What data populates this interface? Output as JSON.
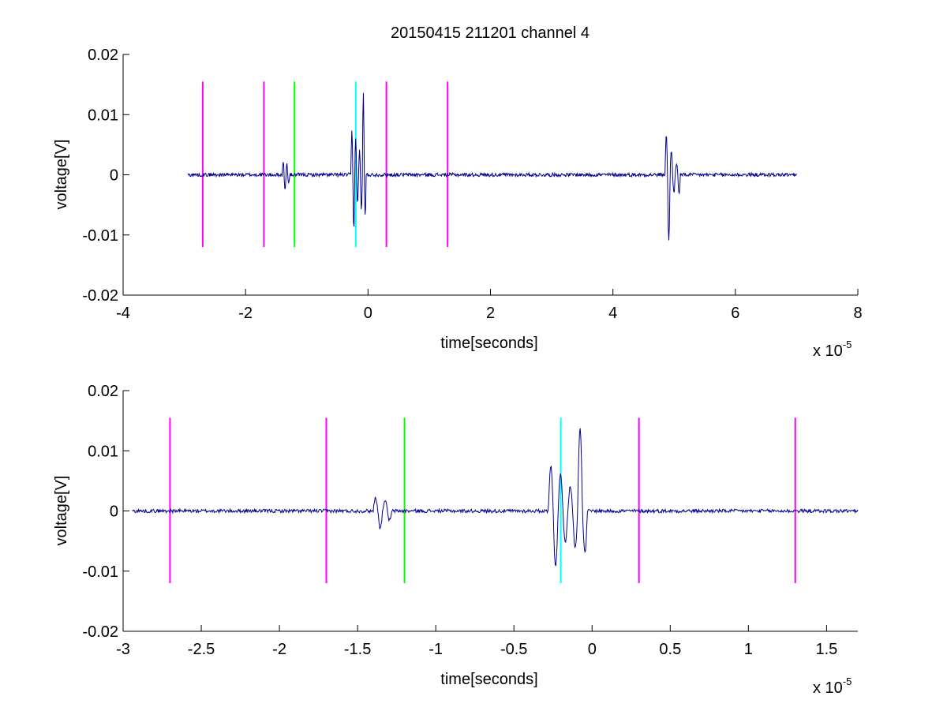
{
  "title": "20150415 211201 channel 4",
  "colors": {
    "signal": "#00008B",
    "marker_magenta": "#FF00FF",
    "marker_green": "#00FF00",
    "marker_cyan": "#00FFFF",
    "axes": "#000000",
    "background": "#FFFFFF"
  },
  "chart_data": [
    {
      "type": "line",
      "title": "20150415 211201 channel 4",
      "xlabel": "time[seconds]",
      "ylabel": "voltage[V]",
      "x_multiplier": {
        "base": "x 10",
        "exponent": "-5"
      },
      "xlim": [
        -4,
        8
      ],
      "ylim": [
        -0.02,
        0.02
      ],
      "xticks": [
        -4,
        -2,
        0,
        2,
        4,
        6,
        8
      ],
      "xtick_labels": [
        "-4",
        "-2",
        "0",
        "2",
        "4",
        "6",
        "8"
      ],
      "yticks": [
        -0.02,
        -0.01,
        0,
        0.01,
        0.02
      ],
      "ytick_labels": [
        "-0.02",
        "-0.01",
        "0",
        "0.01",
        "0.02"
      ],
      "markers": [
        {
          "x": -2.7,
          "color": "magenta",
          "y_range": [
            -0.012,
            0.0155
          ]
        },
        {
          "x": -1.7,
          "color": "magenta",
          "y_range": [
            -0.012,
            0.0155
          ]
        },
        {
          "x": -1.2,
          "color": "green",
          "y_range": [
            -0.012,
            0.0155
          ]
        },
        {
          "x": -0.2,
          "color": "cyan",
          "y_range": [
            -0.012,
            0.0155
          ]
        },
        {
          "x": 0.3,
          "color": "magenta",
          "y_range": [
            -0.012,
            0.0155
          ]
        },
        {
          "x": 1.3,
          "color": "magenta",
          "y_range": [
            -0.012,
            0.0155
          ]
        }
      ],
      "series": [
        {
          "x_range": [
            -2.94,
            7.0
          ],
          "baseline": 0,
          "noise_amplitude": 0.0003,
          "bursts": [
            {
              "x": -1.4,
              "width": 0.12,
              "peaks": [
                0.0022,
                -0.0028,
                0.0018,
                -0.0015
              ]
            },
            {
              "x": -0.28,
              "width": 0.25,
              "peaks": [
                0.0075,
                -0.0092,
                0.006,
                -0.005,
                0.004,
                -0.006,
                0.0138,
                -0.007
              ]
            },
            {
              "x": 4.85,
              "width": 0.25,
              "peaks": [
                0.0065,
                -0.011,
                0.004,
                -0.003,
                0.002,
                -0.0032
              ]
            }
          ]
        }
      ],
      "grid": false
    },
    {
      "type": "line",
      "xlabel": "time[seconds]",
      "ylabel": "voltage[V]",
      "x_multiplier": {
        "base": "x 10",
        "exponent": "-5"
      },
      "xlim": [
        -3.0,
        1.7
      ],
      "ylim": [
        -0.02,
        0.02
      ],
      "xticks": [
        -3,
        -2.5,
        -2,
        -1.5,
        -1,
        -0.5,
        0,
        0.5,
        1,
        1.5
      ],
      "xtick_labels": [
        "-3",
        "-2.5",
        "-2",
        "-1.5",
        "-1",
        "-0.5",
        "0",
        "0.5",
        "1",
        "1.5"
      ],
      "yticks": [
        -0.02,
        -0.01,
        0,
        0.01,
        0.02
      ],
      "ytick_labels": [
        "-0.02",
        "-0.01",
        "0",
        "0.01",
        "0.02"
      ],
      "markers": [
        {
          "x": -2.7,
          "color": "magenta",
          "y_range": [
            -0.012,
            0.0155
          ]
        },
        {
          "x": -1.7,
          "color": "magenta",
          "y_range": [
            -0.012,
            0.0155
          ]
        },
        {
          "x": -1.2,
          "color": "green",
          "y_range": [
            -0.012,
            0.0155
          ]
        },
        {
          "x": -0.2,
          "color": "cyan",
          "y_range": [
            -0.012,
            0.0155
          ]
        },
        {
          "x": 0.3,
          "color": "magenta",
          "y_range": [
            -0.012,
            0.0155
          ]
        },
        {
          "x": 1.3,
          "color": "magenta",
          "y_range": [
            -0.012,
            0.0155
          ]
        }
      ],
      "series": [
        {
          "x_range": [
            -2.94,
            1.7
          ],
          "baseline": 0,
          "noise_amplitude": 0.0003,
          "bursts": [
            {
              "x": -1.4,
              "width": 0.12,
              "peaks": [
                0.0022,
                -0.0028,
                0.0018,
                -0.0015
              ]
            },
            {
              "x": -0.28,
              "width": 0.25,
              "peaks": [
                0.0075,
                -0.0092,
                0.006,
                -0.005,
                0.004,
                -0.006,
                0.0138,
                -0.007
              ]
            }
          ]
        }
      ],
      "grid": false
    }
  ]
}
